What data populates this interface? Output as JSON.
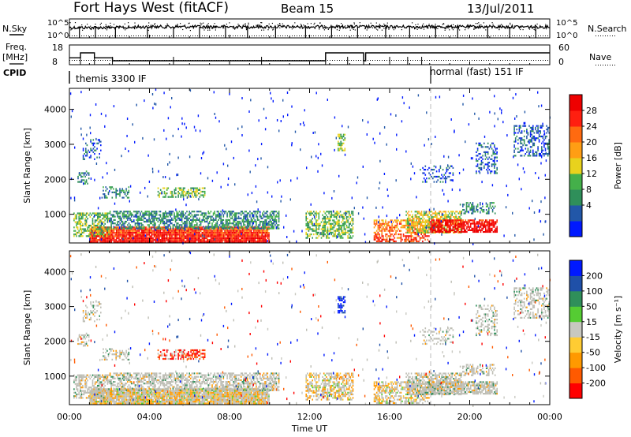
{
  "header": {
    "station": "Fort Hays West (fitACF)",
    "beam": "Beam 15",
    "date": "13/Jul/2011"
  },
  "left_labels": {
    "nsky": "N.Sky",
    "freq_line1": "Freq.",
    "freq_line2": "[MHz]",
    "cpid": "CPID"
  },
  "right_labels": {
    "nsearch": "N.Search",
    "nave": "Nave"
  },
  "cpid_labels": {
    "mode1": "themis 3300 IF",
    "mode2": "normal (fast) 151 IF"
  },
  "colors": {
    "power_scale": [
      "#0019ff",
      "#2257a8",
      "#2f8f5a",
      "#44b04a",
      "#e8d21d",
      "#ff9e14",
      "#ff6a10",
      "#ff1f10",
      "#ee0000"
    ],
    "velocity_scale": [
      "#ff0000",
      "#ff5a00",
      "#ff9900",
      "#ffcc33",
      "#c8c8c0",
      "#55cc33",
      "#2f8f5a",
      "#1f50a8",
      "#0019ff"
    ],
    "scatter_gray": "#bdbdb4"
  },
  "chart_data": [
    {
      "type": "line",
      "name": "noise-panel",
      "ylabel_left": "N.Sky",
      "ylabel_right": "N.Search",
      "y_ticks_left": [
        "10^5",
        "10^0"
      ],
      "y_ticks_right": [
        "10^5",
        "10^0"
      ],
      "xlim_hours": [
        0,
        24
      ],
      "spike_hours": [
        0.5,
        1.3,
        2.3,
        3.9,
        5.2,
        6.5,
        7.8,
        8.9,
        10.3,
        11.8,
        13.1,
        14.4,
        15.8,
        17.0,
        18.3,
        19.4,
        20.9,
        22.0,
        23.3
      ]
    },
    {
      "type": "line",
      "name": "frequency-panel",
      "ylabel_left": "Freq. [MHz]",
      "ylabel_right": "Nave",
      "y_ticks_left": [
        "18",
        "8"
      ],
      "y_ticks_right": [
        "60",
        "0"
      ],
      "xlim_hours": [
        0,
        24
      ],
      "freq_steps": [
        [
          0,
          11.5
        ],
        [
          0.55,
          11.5
        ],
        [
          0.55,
          14
        ],
        [
          1.25,
          14
        ],
        [
          1.25,
          11.5
        ],
        [
          2.15,
          11.5
        ],
        [
          2.15,
          10
        ],
        [
          12.8,
          10
        ],
        [
          12.8,
          14
        ],
        [
          14.7,
          14
        ],
        [
          14.7,
          10
        ],
        [
          14.8,
          10
        ],
        [
          14.8,
          14
        ],
        [
          24,
          14
        ]
      ],
      "freq_marks_hours": [
        0.55,
        1.25,
        2.15,
        5.2,
        9.6,
        12.8,
        13.9,
        14.7,
        16.0,
        16.9,
        17.6
      ]
    },
    {
      "type": "heatmap",
      "name": "power-panel",
      "ylabel": "Slant Range [km]",
      "xlim_hours": [
        0,
        24
      ],
      "ylim": [
        180,
        4600
      ],
      "yticks": [
        1000,
        2000,
        3000,
        4000
      ],
      "colorbar_label": "Power [dB]",
      "colorbar_ticks": [
        "28",
        "24",
        "20",
        "16",
        "12",
        "8",
        "4"
      ],
      "mode_change_hour": 18.05
    },
    {
      "type": "heatmap",
      "name": "velocity-panel",
      "ylabel": "Slant Range [km]",
      "xlabel": "Time UT",
      "xlim_hours": [
        0,
        24
      ],
      "ylim": [
        180,
        4600
      ],
      "yticks": [
        1000,
        2000,
        3000,
        4000
      ],
      "xtick_labels": [
        "00:00",
        "04:00",
        "08:00",
        "12:00",
        "16:00",
        "20:00",
        "00:00"
      ],
      "xtick_hours": [
        0,
        4,
        8,
        12,
        16,
        20,
        24
      ],
      "colorbar_label": "Velocity [m s⁻¹]",
      "colorbar_ticks": [
        "200",
        "100",
        "50",
        "15",
        "-15",
        "-50",
        "-100",
        "-200"
      ],
      "mode_change_hour": 18.05
    }
  ],
  "echo_regions": [
    {
      "t0": 1.0,
      "t1": 10.0,
      "r0": 240,
      "r1": 700,
      "density": 0.95,
      "powerBase": 6,
      "velMix": "gray-orange"
    },
    {
      "t0": 0.2,
      "t1": 2.0,
      "r0": 400,
      "r1": 1100,
      "density": 0.55,
      "powerBase": 3,
      "velMix": "gray"
    },
    {
      "t0": 2.0,
      "t1": 10.5,
      "r0": 620,
      "r1": 1150,
      "density": 0.6,
      "powerBase": 2,
      "velMix": "gray"
    },
    {
      "t0": 1.6,
      "t1": 3.0,
      "r0": 1500,
      "r1": 1850,
      "density": 0.35,
      "powerBase": 2,
      "velMix": "gray"
    },
    {
      "t0": 4.4,
      "t1": 6.8,
      "r0": 1520,
      "r1": 1820,
      "density": 0.55,
      "powerBase": 3,
      "velMix": "red"
    },
    {
      "t0": 0.6,
      "t1": 1.6,
      "r0": 2600,
      "r1": 3200,
      "density": 0.3,
      "powerBase": 1,
      "velMix": "gray"
    },
    {
      "t0": 0.4,
      "t1": 1.0,
      "r0": 1900,
      "r1": 2300,
      "density": 0.35,
      "powerBase": 2,
      "velMix": "gray"
    },
    {
      "t0": 11.8,
      "t1": 14.2,
      "r0": 350,
      "r1": 1150,
      "density": 0.55,
      "powerBase": 3,
      "velMix": "gray-orange"
    },
    {
      "t0": 13.4,
      "t1": 13.8,
      "r0": 2850,
      "r1": 3350,
      "density": 0.6,
      "powerBase": 3,
      "velMix": "blue"
    },
    {
      "t0": 15.2,
      "t1": 18.0,
      "r0": 250,
      "r1": 900,
      "density": 0.55,
      "powerBase": 5,
      "velMix": "gray-orange"
    },
    {
      "t0": 16.8,
      "t1": 19.6,
      "r0": 500,
      "r1": 1150,
      "density": 0.7,
      "powerBase": 4,
      "velMix": "gray"
    },
    {
      "t0": 18.0,
      "t1": 21.4,
      "r0": 520,
      "r1": 900,
      "density": 0.75,
      "powerBase": 7,
      "velMix": "gray"
    },
    {
      "t0": 19.5,
      "t1": 21.3,
      "r0": 1050,
      "r1": 1400,
      "density": 0.4,
      "powerBase": 2,
      "velMix": "gray"
    },
    {
      "t0": 17.5,
      "t1": 19.2,
      "r0": 1950,
      "r1": 2450,
      "density": 0.25,
      "powerBase": 1,
      "velMix": "gray"
    },
    {
      "t0": 20.3,
      "t1": 21.4,
      "r0": 2200,
      "r1": 3100,
      "density": 0.3,
      "powerBase": 1,
      "velMix": "gray"
    },
    {
      "t0": 22.2,
      "t1": 24.0,
      "r0": 2700,
      "r1": 3600,
      "density": 0.35,
      "powerBase": 1,
      "velMix": "gray"
    }
  ]
}
